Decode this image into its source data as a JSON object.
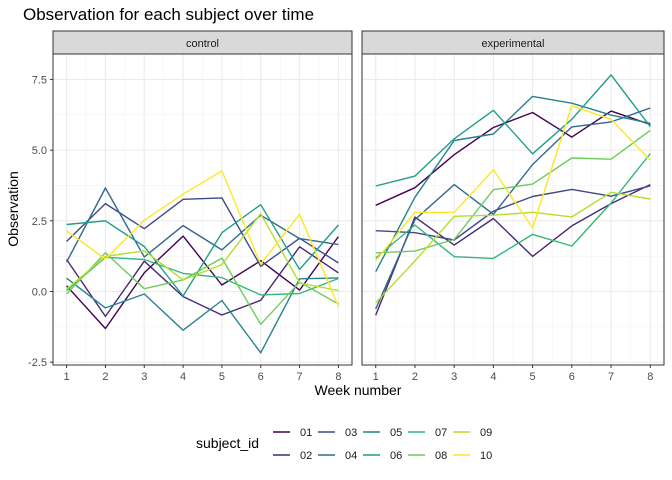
{
  "chart_data": {
    "type": "line",
    "title": "Observation for each subject over time",
    "xlabel": "Week number",
    "ylabel": "Observation",
    "x": [
      1,
      2,
      3,
      4,
      5,
      6,
      7,
      8
    ],
    "xlim": [
      0.65,
      8.35
    ],
    "ylim": [
      -2.6,
      8.4
    ],
    "y_ticks": [
      -2.5,
      0.0,
      2.5,
      5.0,
      7.5
    ],
    "y_tick_labels": [
      "-2.5",
      "0.0",
      "2.5",
      "5.0",
      "7.5"
    ],
    "x_ticks": [
      1,
      2,
      3,
      4,
      5,
      6,
      7,
      8
    ],
    "x_tick_labels": [
      "1",
      "2",
      "3",
      "4",
      "5",
      "6",
      "7",
      "8"
    ],
    "grid": true,
    "legend_title": "subject_id",
    "legend_position": "bottom",
    "subject_ids": [
      "01",
      "02",
      "03",
      "04",
      "05",
      "06",
      "07",
      "08",
      "09",
      "10"
    ],
    "colors": [
      "#440154",
      "#482878",
      "#3E4A89",
      "#31688E",
      "#26828E",
      "#1F9E89",
      "#35B779",
      "#6DCD59",
      "#B4DE2C",
      "#FDE725"
    ],
    "facets": [
      {
        "label": "control",
        "series": [
          {
            "name": "01",
            "values": [
              0.2,
              -1.31,
              0.66,
              1.96,
              0.23,
              1.09,
              0.05,
              1.94
            ]
          },
          {
            "name": "02",
            "values": [
              1.13,
              -0.88,
              1.07,
              -0.18,
              -0.83,
              -0.31,
              1.58,
              0.66
            ]
          },
          {
            "name": "03",
            "values": [
              1.77,
              3.11,
              2.22,
              3.26,
              3.31,
              0.89,
              1.88,
              1.01
            ]
          },
          {
            "name": "04",
            "values": [
              1.04,
              3.66,
              1.22,
              2.33,
              1.47,
              2.7,
              1.87,
              1.66
            ]
          },
          {
            "name": "05",
            "values": [
              0.47,
              -0.58,
              -0.09,
              -1.37,
              -0.32,
              -2.17,
              0.45,
              0.48
            ]
          },
          {
            "name": "06",
            "values": [
              2.37,
              2.5,
              1.59,
              -0.16,
              2.08,
              3.07,
              0.78,
              2.35
            ]
          },
          {
            "name": "07",
            "values": [
              0.03,
              1.21,
              1.13,
              0.64,
              0.49,
              -0.12,
              -0.07,
              0.46
            ]
          },
          {
            "name": "08",
            "values": [
              -0.09,
              1.37,
              0.1,
              0.41,
              1.18,
              -1.16,
              0.33,
              -0.44
            ]
          },
          {
            "name": "09",
            "values": [
              0.08,
              1.24,
              1.44,
              0.41,
              0.95,
              2.75,
              0.3,
              0.03
            ]
          },
          {
            "name": "10",
            "values": [
              2.14,
              1.15,
              2.52,
              3.44,
              4.26,
              0.97,
              2.73,
              -0.53
            ]
          }
        ]
      },
      {
        "label": "experimental",
        "series": [
          {
            "name": "01",
            "values": [
              3.05,
              3.67,
              4.84,
              5.8,
              6.33,
              5.46,
              6.38,
              5.91
            ]
          },
          {
            "name": "02",
            "values": [
              -0.84,
              2.63,
              1.64,
              2.58,
              1.24,
              2.32,
              3.11,
              3.78
            ]
          },
          {
            "name": "03",
            "values": [
              2.15,
              2.08,
              1.82,
              2.84,
              3.36,
              3.61,
              3.37,
              3.74
            ]
          },
          {
            "name": "04",
            "values": [
              -0.62,
              2.54,
              3.78,
              2.73,
              4.49,
              5.82,
              6.0,
              6.49
            ]
          },
          {
            "name": "05",
            "values": [
              0.7,
              3.33,
              5.34,
              5.57,
              6.9,
              6.66,
              6.24,
              5.95
            ]
          },
          {
            "name": "06",
            "values": [
              3.73,
              4.08,
              5.4,
              6.41,
              4.87,
              6.09,
              7.66,
              5.83
            ]
          },
          {
            "name": "07",
            "values": [
              1.18,
              2.35,
              1.23,
              1.17,
              2.02,
              1.61,
              3.13,
              4.88
            ]
          },
          {
            "name": "08",
            "values": [
              1.37,
              1.43,
              1.84,
              3.6,
              3.8,
              4.72,
              4.68,
              5.7
            ]
          },
          {
            "name": "09",
            "values": [
              -0.4,
              1.08,
              2.66,
              2.7,
              2.8,
              2.64,
              3.51,
              3.27
            ]
          },
          {
            "name": "10",
            "values": [
              1.09,
              2.8,
              2.8,
              4.3,
              2.25,
              6.57,
              6.09,
              4.64
            ]
          }
        ]
      }
    ]
  }
}
